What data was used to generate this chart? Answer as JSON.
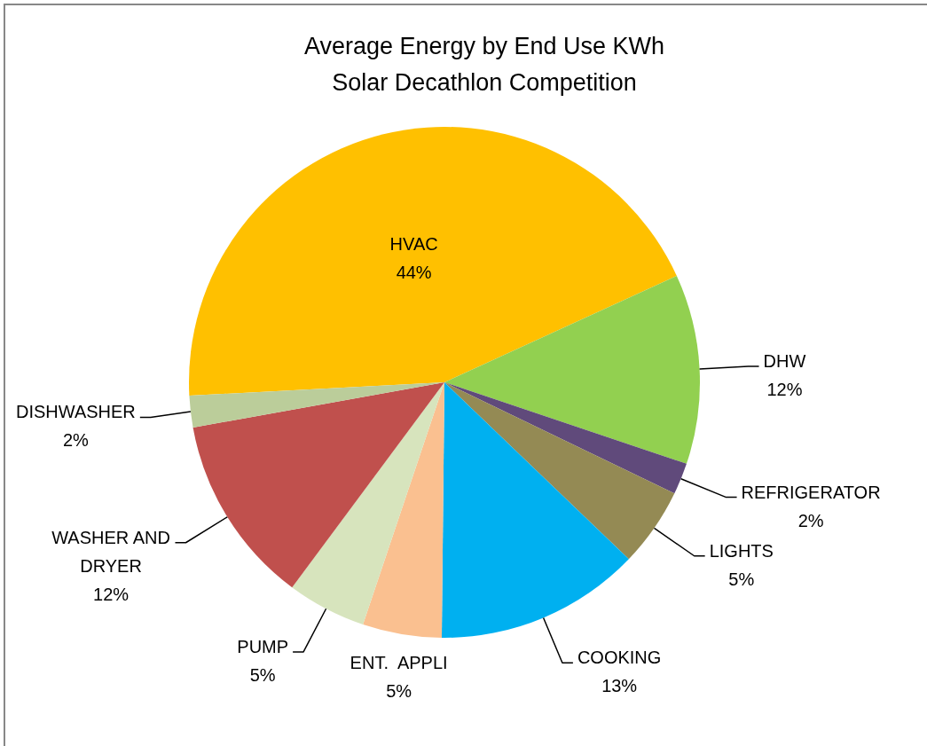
{
  "chart_data": {
    "type": "pie",
    "title": "Average Energy by End Use KWh",
    "subtitle": "Solar Decathlon Competition",
    "categories": [
      "HVAC",
      "DHW",
      "REFRIGERATOR",
      "LIGHTS",
      "COOKING",
      "ENT.  APPLI",
      "PUMP",
      "WASHER AND DRYER",
      "DISHWASHER"
    ],
    "values": [
      44,
      12,
      2,
      5,
      13,
      5,
      5,
      12,
      2
    ],
    "colors": [
      "#ffc000",
      "#92d050",
      "#604a7b",
      "#948a54",
      "#00b0f0",
      "#fac090",
      "#d7e4bd",
      "#c0504d",
      "#bbcd9a"
    ],
    "value_labels": [
      "44%",
      "12%",
      "2%",
      "5%",
      "13%",
      "5%",
      "5%",
      "12%",
      "2%"
    ]
  }
}
